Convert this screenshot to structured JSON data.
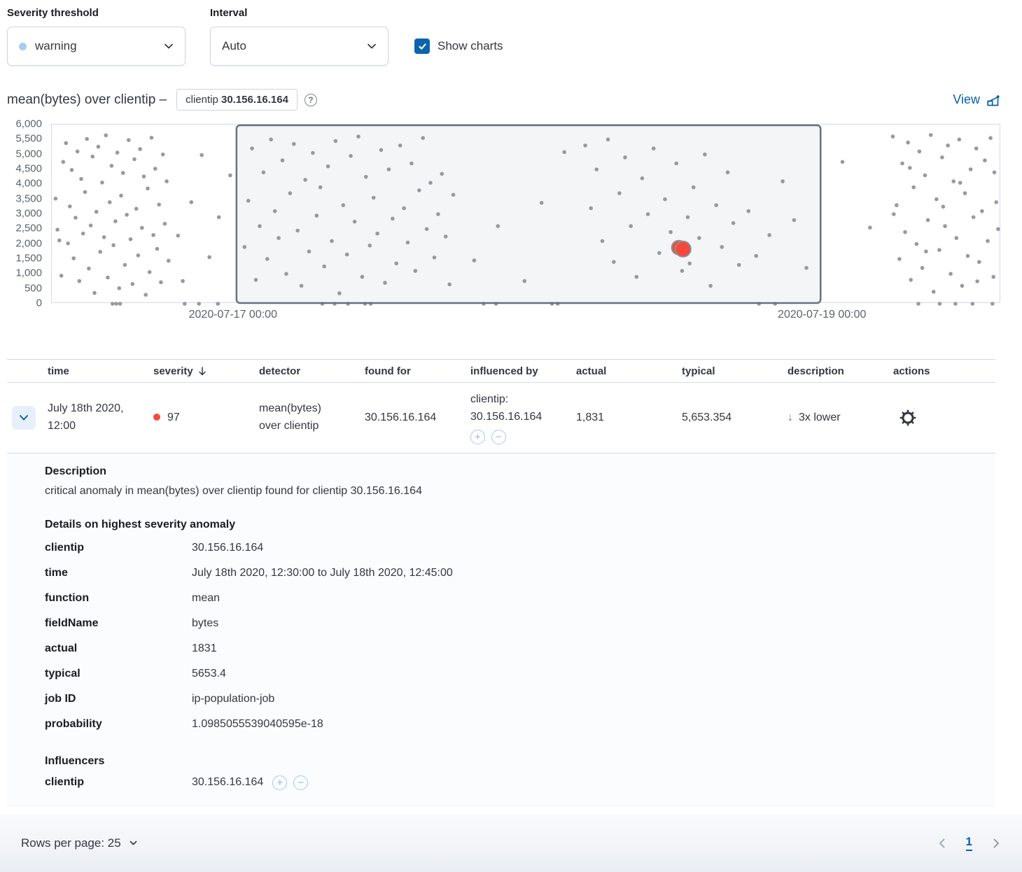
{
  "controls": {
    "severity": {
      "label": "Severity threshold",
      "value": "warning",
      "dot_color": "#8bc8fb"
    },
    "interval": {
      "label": "Interval",
      "value": "Auto"
    },
    "show_charts": {
      "label": "Show charts",
      "checked": true
    }
  },
  "chart_header": {
    "title": "mean(bytes) over clientip –",
    "badge_field": "clientip",
    "badge_value": "30.156.16.164",
    "view_label": "View"
  },
  "chart_data": {
    "type": "scatter",
    "title": "mean(bytes) over clientip – clientip 30.156.16.164",
    "ylim": [
      0,
      6000
    ],
    "y_tick_labels": [
      "6,000",
      "5,500",
      "5,000",
      "4,500",
      "4,000",
      "3,500",
      "3,000",
      "2,500",
      "2,000",
      "1,500",
      "1,000",
      "500",
      "0"
    ],
    "x_ticks": [
      {
        "label": "2020-07-17 00:00",
        "pos": 0.1916
      },
      {
        "label": "2020-07-19 00:00",
        "pos": 0.8121
      }
    ],
    "selection": {
      "start": 0.1946,
      "end": 0.8099,
      "from": "2020-07-17 00:00",
      "to": "2020-07-19 00:00"
    },
    "point_color": "#98999e",
    "anomaly_color": "#f6493c",
    "anomaly_stroke": "#8e9096",
    "anomaly_markers": [
      {
        "x": 0.6605,
        "value": 1880,
        "r": 10
      },
      {
        "x": 0.665,
        "value": 1831,
        "r": 11
      }
    ],
    "points": [
      [
        0.004,
        3520
      ],
      [
        0.006,
        2480
      ],
      [
        0.008,
        2120
      ],
      [
        0.01,
        940
      ],
      [
        0.012,
        4750
      ],
      [
        0.015,
        5380
      ],
      [
        0.017,
        2020
      ],
      [
        0.019,
        3260
      ],
      [
        0.021,
        4480
      ],
      [
        0.023,
        1520
      ],
      [
        0.025,
        2880
      ],
      [
        0.027,
        5100
      ],
      [
        0.029,
        760
      ],
      [
        0.031,
        4180
      ],
      [
        0.033,
        2350
      ],
      [
        0.035,
        3740
      ],
      [
        0.037,
        5520
      ],
      [
        0.039,
        1180
      ],
      [
        0.041,
        2620
      ],
      [
        0.043,
        4930
      ],
      [
        0.045,
        360
      ],
      [
        0.047,
        3080
      ],
      [
        0.049,
        5260
      ],
      [
        0.051,
        1740
      ],
      [
        0.053,
        4060
      ],
      [
        0.055,
        2230
      ],
      [
        0.057,
        5640
      ],
      [
        0.059,
        880
      ],
      [
        0.061,
        3400
      ],
      [
        0.063,
        4620
      ],
      [
        0.065,
        1960
      ],
      [
        0.067,
        2760
      ],
      [
        0.069,
        5060
      ],
      [
        0.071,
        520
      ],
      [
        0.073,
        3620
      ],
      [
        0.075,
        4380
      ],
      [
        0.077,
        1300
      ],
      [
        0.079,
        2980
      ],
      [
        0.081,
        5480
      ],
      [
        0.083,
        2160
      ],
      [
        0.085,
        660
      ],
      [
        0.087,
        4840
      ],
      [
        0.089,
        3180
      ],
      [
        0.091,
        1620
      ],
      [
        0.093,
        5180
      ],
      [
        0.095,
        2540
      ],
      [
        0.097,
        4260
      ],
      [
        0.099,
        300
      ],
      [
        0.101,
        3860
      ],
      [
        0.103,
        1060
      ],
      [
        0.105,
        5560
      ],
      [
        0.107,
        2300
      ],
      [
        0.109,
        4520
      ],
      [
        0.111,
        1840
      ],
      [
        0.113,
        3320
      ],
      [
        0.115,
        720
      ],
      [
        0.117,
        5000
      ],
      [
        0.119,
        2680
      ],
      [
        0.121,
        4100
      ],
      [
        0.123,
        1440
      ],
      [
        0.064,
        0
      ],
      [
        0.068,
        0
      ],
      [
        0.072,
        0
      ],
      [
        0.14,
        0
      ],
      [
        0.155,
        0
      ],
      [
        0.175,
        0
      ],
      [
        0.133,
        2280
      ],
      [
        0.138,
        760
      ],
      [
        0.147,
        3400
      ],
      [
        0.158,
        4980
      ],
      [
        0.166,
        1560
      ],
      [
        0.176,
        2900
      ],
      [
        0.188,
        4300
      ],
      [
        0.203,
        1900
      ],
      [
        0.207,
        3450
      ],
      [
        0.211,
        5200
      ],
      [
        0.215,
        800
      ],
      [
        0.219,
        2600
      ],
      [
        0.223,
        4400
      ],
      [
        0.227,
        1500
      ],
      [
        0.231,
        5500
      ],
      [
        0.235,
        3100
      ],
      [
        0.239,
        2200
      ],
      [
        0.243,
        4800
      ],
      [
        0.247,
        1000
      ],
      [
        0.251,
        3700
      ],
      [
        0.255,
        5350
      ],
      [
        0.259,
        2450
      ],
      [
        0.263,
        600
      ],
      [
        0.267,
        4150
      ],
      [
        0.271,
        1750
      ],
      [
        0.275,
        5050
      ],
      [
        0.279,
        2950
      ],
      [
        0.283,
        3900
      ],
      [
        0.287,
        1250
      ],
      [
        0.291,
        4600
      ],
      [
        0.295,
        2100
      ],
      [
        0.299,
        5450
      ],
      [
        0.303,
        350
      ],
      [
        0.307,
        3300
      ],
      [
        0.311,
        1650
      ],
      [
        0.315,
        4950
      ],
      [
        0.319,
        2750
      ],
      [
        0.323,
        5600
      ],
      [
        0.327,
        900
      ],
      [
        0.331,
        4250
      ],
      [
        0.335,
        1950
      ],
      [
        0.339,
        3550
      ],
      [
        0.343,
        2350
      ],
      [
        0.347,
        5150
      ],
      [
        0.351,
        700
      ],
      [
        0.355,
        4500
      ],
      [
        0.359,
        2850
      ],
      [
        0.363,
        1350
      ],
      [
        0.367,
        5300
      ],
      [
        0.371,
        3200
      ],
      [
        0.375,
        2050
      ],
      [
        0.379,
        4700
      ],
      [
        0.383,
        1100
      ],
      [
        0.387,
        3800
      ],
      [
        0.391,
        5550
      ],
      [
        0.395,
        2500
      ],
      [
        0.399,
        4050
      ],
      [
        0.403,
        1550
      ],
      [
        0.407,
        3000
      ],
      [
        0.411,
        4350
      ],
      [
        0.415,
        2250
      ],
      [
        0.419,
        650
      ],
      [
        0.423,
        3650
      ],
      [
        0.285,
        0
      ],
      [
        0.298,
        0
      ],
      [
        0.312,
        0
      ],
      [
        0.33,
        0
      ],
      [
        0.336,
        0
      ],
      [
        0.445,
        1450
      ],
      [
        0.47,
        2600
      ],
      [
        0.498,
        760
      ],
      [
        0.516,
        3380
      ],
      [
        0.54,
        5080
      ],
      [
        0.455,
        0
      ],
      [
        0.468,
        0
      ],
      [
        0.527,
        0
      ],
      [
        0.533,
        0
      ],
      [
        0.562,
        5300
      ],
      [
        0.568,
        3200
      ],
      [
        0.574,
        4500
      ],
      [
        0.58,
        2100
      ],
      [
        0.586,
        5500
      ],
      [
        0.592,
        1400
      ],
      [
        0.598,
        3700
      ],
      [
        0.604,
        4900
      ],
      [
        0.61,
        2600
      ],
      [
        0.616,
        900
      ],
      [
        0.622,
        4200
      ],
      [
        0.628,
        3000
      ],
      [
        0.634,
        5200
      ],
      [
        0.64,
        1700
      ],
      [
        0.646,
        3500
      ],
      [
        0.652,
        2400
      ],
      [
        0.658,
        4700
      ],
      [
        0.664,
        1100
      ],
      [
        0.67,
        2900
      ],
      [
        0.676,
        3900
      ],
      [
        0.682,
        2200
      ],
      [
        0.688,
        5000
      ],
      [
        0.694,
        600
      ],
      [
        0.7,
        3300
      ],
      [
        0.706,
        1900
      ],
      [
        0.712,
        4400
      ],
      [
        0.718,
        2700
      ],
      [
        0.724,
        1300
      ],
      [
        0.672,
        1350
      ],
      [
        0.734,
        3100
      ],
      [
        0.742,
        1600
      ],
      [
        0.756,
        2300
      ],
      [
        0.77,
        4100
      ],
      [
        0.782,
        2800
      ],
      [
        0.795,
        1200
      ],
      [
        0.745,
        0
      ],
      [
        0.762,
        0
      ],
      [
        0.833,
        4750
      ],
      [
        0.862,
        2550
      ],
      [
        0.886,
        5600
      ],
      [
        0.89,
        3300
      ],
      [
        0.893,
        1500
      ],
      [
        0.896,
        4700
      ],
      [
        0.899,
        2400
      ],
      [
        0.902,
        5400
      ],
      [
        0.905,
        800
      ],
      [
        0.908,
        3900
      ],
      [
        0.911,
        2000
      ],
      [
        0.914,
        5100
      ],
      [
        0.917,
        1200
      ],
      [
        0.92,
        4300
      ],
      [
        0.923,
        2800
      ],
      [
        0.926,
        5650
      ],
      [
        0.929,
        400
      ],
      [
        0.932,
        3500
      ],
      [
        0.935,
        1800
      ],
      [
        0.938,
        4900
      ],
      [
        0.941,
        2600
      ],
      [
        0.944,
        5300
      ],
      [
        0.947,
        1000
      ],
      [
        0.95,
        4100
      ],
      [
        0.953,
        2200
      ],
      [
        0.956,
        5500
      ],
      [
        0.959,
        600
      ],
      [
        0.962,
        3700
      ],
      [
        0.965,
        1600
      ],
      [
        0.968,
        4500
      ],
      [
        0.971,
        2900
      ],
      [
        0.974,
        5200
      ],
      [
        0.977,
        1400
      ],
      [
        0.98,
        3100
      ],
      [
        0.983,
        4800
      ],
      [
        0.986,
        2100
      ],
      [
        0.989,
        5550
      ],
      [
        0.992,
        900
      ],
      [
        0.995,
        3400
      ],
      [
        0.997,
        2500
      ],
      [
        0.913,
        0
      ],
      [
        0.9355,
        0
      ],
      [
        0.952,
        0
      ],
      [
        0.97,
        0
      ],
      [
        0.991,
        0
      ],
      [
        0.887,
        3000
      ],
      [
        0.904,
        4550
      ],
      [
        0.921,
        1750
      ],
      [
        0.939,
        3250
      ],
      [
        0.957,
        4050
      ],
      [
        0.975,
        750
      ],
      [
        0.993,
        4400
      ]
    ]
  },
  "table": {
    "columns": [
      "time",
      "severity",
      "detector",
      "found for",
      "influenced by",
      "actual",
      "typical",
      "description",
      "actions"
    ],
    "sort": {
      "column": "severity",
      "direction": "desc"
    },
    "row": {
      "time": "July 18th 2020, 12:00",
      "severity": "97",
      "detector": "mean(bytes) over clientip",
      "found_for": "30.156.16.164",
      "influenced_by_field": "clientip:",
      "influenced_by_value": "30.156.16.164",
      "actual": "1,831",
      "typical": "5,653.354",
      "description_text": "3x lower"
    }
  },
  "details": {
    "description_title": "Description",
    "description": "critical anomaly in mean(bytes) over clientip found for clientip 30.156.16.164",
    "details_title": "Details on highest severity anomaly",
    "fields": [
      {
        "name": "clientip",
        "value": "30.156.16.164"
      },
      {
        "name": "time",
        "value": "July 18th 2020, 12:30:00 to July 18th 2020, 12:45:00"
      },
      {
        "name": "function",
        "value": "mean"
      },
      {
        "name": "fieldName",
        "value": "bytes"
      },
      {
        "name": "actual",
        "value": "1831"
      },
      {
        "name": "typical",
        "value": "5653.4"
      },
      {
        "name": "job ID",
        "value": "ip-population-job"
      },
      {
        "name": "probability",
        "value": "1.0985055539040595e-18"
      }
    ],
    "influencers_title": "Influencers",
    "influencer_name": "clientip",
    "influencer_value": "30.156.16.164"
  },
  "footer": {
    "rows_per_page": "Rows per page: 25",
    "page": "1"
  },
  "colors": {
    "accent_blue": "#0a60a8",
    "critical_red": "#f6493c",
    "warning_dot": "#8bc8fb",
    "selection_border": "#69707d",
    "point_gray": "#98999e"
  }
}
